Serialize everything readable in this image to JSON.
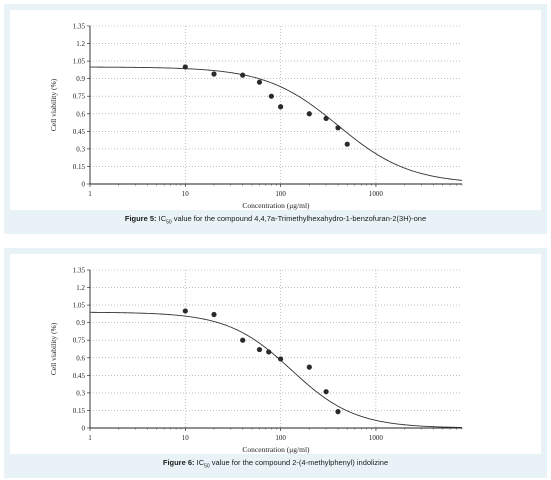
{
  "chart_data": [
    {
      "type": "scatter",
      "subtype": "dose-response scatter with fitted sigmoid curve",
      "xscale": "log",
      "xlim": [
        1,
        8000
      ],
      "ylim": [
        0,
        1.35
      ],
      "xticks": [
        "1",
        "10",
        "100",
        "1000"
      ],
      "yticks": [
        "0",
        "0.15",
        "0.3",
        "0.45",
        "0.6",
        "0.75",
        "0.9",
        "1.05",
        "1.2",
        "1.35"
      ],
      "xlabel": "Concentration (μg/ml)",
      "ylabel": "Cell viability (%)",
      "grid": "dotted",
      "points": [
        {
          "x": 10,
          "y": 1.0
        },
        {
          "x": 20,
          "y": 0.94
        },
        {
          "x": 40,
          "y": 0.93
        },
        {
          "x": 60,
          "y": 0.87
        },
        {
          "x": 80,
          "y": 0.75
        },
        {
          "x": 100,
          "y": 0.66
        },
        {
          "x": 200,
          "y": 0.6
        },
        {
          "x": 300,
          "y": 0.56
        },
        {
          "x": 400,
          "y": 0.48
        },
        {
          "x": 500,
          "y": 0.34
        }
      ],
      "curve": {
        "top": 1.0,
        "bottom": 0.0,
        "ec50": 400,
        "hill": 1.15
      },
      "caption": {
        "label": "Figure 5:",
        "prefix": "IC",
        "sub": "50",
        "text": "value for the compound 4,4,7a-Trimethylhexahydro-1-benzofuran-2(3H)-one"
      }
    },
    {
      "type": "scatter",
      "subtype": "dose-response scatter with fitted sigmoid curve",
      "xscale": "log",
      "xlim": [
        1,
        8000
      ],
      "ylim": [
        0,
        1.35
      ],
      "xticks": [
        "1",
        "10",
        "100",
        "1000"
      ],
      "yticks": [
        "0",
        "0.15",
        "0.3",
        "0.45",
        "0.6",
        "0.75",
        "0.9",
        "1.05",
        "1.2",
        "1.35"
      ],
      "xlabel": "Concentration (μg/ml)",
      "ylabel": "Cell viability (%)",
      "grid": "dotted",
      "points": [
        {
          "x": 10,
          "y": 1.0
        },
        {
          "x": 20,
          "y": 0.97
        },
        {
          "x": 40,
          "y": 0.75
        },
        {
          "x": 60,
          "y": 0.67
        },
        {
          "x": 75,
          "y": 0.65
        },
        {
          "x": 100,
          "y": 0.59
        },
        {
          "x": 200,
          "y": 0.52
        },
        {
          "x": 300,
          "y": 0.31
        },
        {
          "x": 400,
          "y": 0.14
        }
      ],
      "curve": {
        "top": 0.99,
        "bottom": 0.0,
        "ec50": 130,
        "hill": 1.3
      },
      "caption": {
        "label": "Figure 6:",
        "prefix": "IC",
        "sub": "50",
        "text": "value for the compound 2-(4-methylphenyl) indolizine"
      }
    }
  ]
}
